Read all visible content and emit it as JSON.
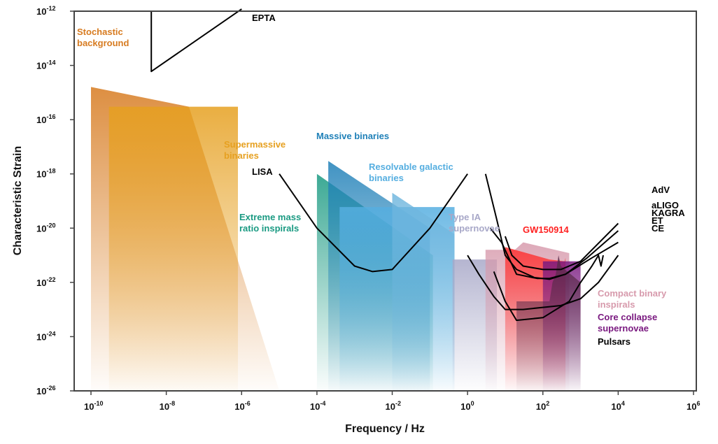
{
  "chart_data": {
    "type": "area",
    "xlabel": "Frequency / Hz",
    "ylabel": "Characteristic Strain",
    "x_scale": "log",
    "y_scale": "log",
    "xlim": [
      1e-10,
      1000000.0
    ],
    "ylim": [
      1e-26,
      1e-12
    ],
    "x_ticks": [
      {
        "base": "10",
        "exp": "-10"
      },
      {
        "base": "10",
        "exp": "-8"
      },
      {
        "base": "10",
        "exp": "-6"
      },
      {
        "base": "10",
        "exp": "-4"
      },
      {
        "base": "10",
        "exp": "-2"
      },
      {
        "base": "10",
        "exp": "0"
      },
      {
        "base": "10",
        "exp": "2"
      },
      {
        "base": "10",
        "exp": "4"
      },
      {
        "base": "10",
        "exp": "6"
      }
    ],
    "y_ticks": [
      {
        "base": "10",
        "exp": "-12"
      },
      {
        "base": "10",
        "exp": "-14"
      },
      {
        "base": "10",
        "exp": "-16"
      },
      {
        "base": "10",
        "exp": "-18"
      },
      {
        "base": "10",
        "exp": "-20"
      },
      {
        "base": "10",
        "exp": "-22"
      },
      {
        "base": "10",
        "exp": "-24"
      },
      {
        "base": "10",
        "exp": "-26"
      }
    ],
    "grid": false,
    "regions": [
      {
        "name": "Stochastic background",
        "color": "#d77b20",
        "points": [
          [
            1e-10,
            1.6e-15
          ],
          [
            4e-08,
            3e-16
          ],
          [
            1e-05,
            1e-26
          ],
          [
            1e-10,
            1e-26
          ]
        ]
      },
      {
        "name": "Supermassive binaries",
        "color": "#e6a020",
        "points": [
          [
            3e-10,
            3e-16
          ],
          [
            8e-07,
            3e-16
          ],
          [
            8e-07,
            1e-26
          ],
          [
            3e-10,
            1e-26
          ]
        ]
      },
      {
        "name": "Extreme mass ratio inspirals",
        "color": "#1a9a82",
        "points": [
          [
            0.0001,
            1e-18
          ],
          [
            0.12,
            1e-21
          ],
          [
            0.12,
            1e-26
          ],
          [
            0.0001,
            1e-26
          ]
        ]
      },
      {
        "name": "Massive binaries",
        "color": "#1f80b8",
        "points": [
          [
            0.0002,
            3e-18
          ],
          [
            0.1,
            1e-20
          ],
          [
            0.1,
            1e-26
          ],
          [
            0.0002,
            1e-26
          ]
        ]
      },
      {
        "name": "Resolvable galactic binaries",
        "color": "#55aee0",
        "points": [
          [
            0.0004,
            6e-20
          ],
          [
            0.45,
            6e-20
          ],
          [
            0.45,
            1e-26
          ],
          [
            0.0004,
            1e-26
          ]
        ]
      },
      {
        "name": "Resolvable galactic binaries",
        "color": "#6fb6de",
        "points": [
          [
            0.01,
            2e-19
          ],
          [
            0.45,
            6e-21
          ],
          [
            0.45,
            1e-26
          ],
          [
            0.01,
            1e-26
          ]
        ]
      },
      {
        "name": "Type IA supernovae",
        "color": "#a8a8c8",
        "points": [
          [
            0.4,
            7e-22
          ],
          [
            6,
            7e-22
          ],
          [
            6,
            1e-26
          ],
          [
            0.4,
            1e-26
          ]
        ]
      },
      {
        "name": "Compact binary inspirals",
        "color": "#d79aac",
        "points": [
          [
            3,
            1.6e-21
          ],
          [
            18,
            1.6e-21
          ],
          [
            30,
            3e-21
          ],
          [
            500,
            1.2e-21
          ],
          [
            500,
            1e-26
          ],
          [
            3,
            1e-26
          ]
        ]
      },
      {
        "name": "GW150914",
        "color": "#ff3030",
        "points": [
          [
            10,
            2e-21
          ],
          [
            150,
            7e-22
          ],
          [
            380,
            6e-22
          ],
          [
            400,
            8e-22
          ],
          [
            400,
            1e-26
          ],
          [
            10,
            1e-26
          ]
        ]
      },
      {
        "name": "Core collapse supernovae",
        "color": "#7a1a80",
        "points": [
          [
            100,
            6e-22
          ],
          [
            1000,
            6e-22
          ],
          [
            1000,
            1e-26
          ],
          [
            100,
            1e-26
          ]
        ]
      },
      {
        "name": "Compact binary inspirals",
        "color": "#5a2a4a",
        "points": [
          [
            20,
            2e-23
          ],
          [
            150,
            2e-23
          ],
          [
            180,
            1e-22
          ],
          [
            220,
            2e-22
          ],
          [
            260,
            1e-21
          ],
          [
            300,
            4e-22
          ],
          [
            1000,
            1e-22
          ],
          [
            1000,
            1e-26
          ],
          [
            20,
            1e-26
          ]
        ]
      }
    ],
    "series": [
      {
        "name": "EPTA",
        "color": "#000000",
        "points": [
          [
            4e-09,
            1e-12
          ],
          [
            4e-09,
            6e-15
          ],
          [
            1e-06,
            1.2e-12
          ]
        ]
      },
      {
        "name": "LISA",
        "color": "#000000",
        "points": [
          [
            1e-05,
            1e-18
          ],
          [
            0.0001,
            1e-20
          ],
          [
            0.001,
            4e-22
          ],
          [
            0.003,
            2.5e-22
          ],
          [
            0.01,
            3e-22
          ],
          [
            0.1,
            1e-20
          ],
          [
            1,
            1e-18
          ]
        ]
      },
      {
        "name": "AdV",
        "color": "#000000",
        "points": [
          [
            10,
            5e-21
          ],
          [
            15,
            1e-21
          ],
          [
            30,
            4e-22
          ],
          [
            100,
            3e-22
          ],
          [
            300,
            3e-22
          ],
          [
            1000,
            6e-22
          ],
          [
            10000,
            1.5e-20
          ]
        ]
      },
      {
        "name": "aLIGO",
        "color": "#000000",
        "points": [
          [
            3,
            1e-18
          ],
          [
            6,
            2e-20
          ],
          [
            10,
            1e-21
          ],
          [
            20,
            3e-22
          ],
          [
            60,
            1.5e-22
          ],
          [
            150,
            1.3e-22
          ],
          [
            400,
            2e-22
          ],
          [
            1500,
            8e-22
          ],
          [
            10000,
            8e-21
          ]
        ]
      },
      {
        "name": "KAGRA",
        "color": "#000000",
        "points": [
          [
            4,
            1e-20
          ],
          [
            8,
            3e-21
          ],
          [
            20,
            2e-22
          ],
          [
            70,
            1.4e-22
          ],
          [
            150,
            1.4e-22
          ],
          [
            400,
            2e-22
          ],
          [
            2000,
            8e-22
          ],
          [
            10000,
            3e-21
          ]
        ]
      },
      {
        "name": "ET",
        "color": "#000000",
        "points": [
          [
            1,
            1e-21
          ],
          [
            2,
            2e-22
          ],
          [
            5,
            3e-23
          ],
          [
            10,
            1e-23
          ],
          [
            30,
            1e-23
          ],
          [
            100,
            1.2e-23
          ],
          [
            300,
            1.4e-23
          ],
          [
            1000,
            2.5e-23
          ],
          [
            3000,
            1e-22
          ],
          [
            10000,
            1e-21
          ]
        ]
      },
      {
        "name": "CE",
        "color": "#000000",
        "points": [
          [
            5,
            2.5e-22
          ],
          [
            10,
            2e-23
          ],
          [
            20,
            4e-24
          ],
          [
            100,
            5e-24
          ],
          [
            500,
            2e-23
          ],
          [
            1000,
            1e-22
          ],
          [
            2000,
            4e-22
          ],
          [
            3000,
            1e-21
          ],
          [
            3500,
            4e-22
          ],
          [
            4000,
            1e-21
          ]
        ]
      }
    ],
    "annotations": [
      {
        "text": "EPTA",
        "color": "#000000"
      },
      {
        "text": "Stochastic",
        "color": "#d77b20"
      },
      {
        "text": "background",
        "color": "#d77b20"
      },
      {
        "text": "Supermassive",
        "color": "#e6a020"
      },
      {
        "text": "binaries",
        "color": "#e6a020"
      },
      {
        "text": "Massive binaries",
        "color": "#1f80b8"
      },
      {
        "text": "Resolvable galactic",
        "color": "#55aee0"
      },
      {
        "text": "binaries",
        "color": "#55aee0"
      },
      {
        "text": "LISA",
        "color": "#000000"
      },
      {
        "text": "Extreme mass",
        "color": "#1a9a82"
      },
      {
        "text": "ratio inspirals",
        "color": "#1a9a82"
      },
      {
        "text": "Type IA",
        "color": "#a8a8c8"
      },
      {
        "text": "supernovae",
        "color": "#a8a8c8"
      },
      {
        "text": "GW150914",
        "color": "#ff2020"
      },
      {
        "text": "AdV",
        "color": "#000000"
      },
      {
        "text": "aLIGO",
        "color": "#000000"
      },
      {
        "text": "KAGRA",
        "color": "#000000"
      },
      {
        "text": "ET",
        "color": "#000000"
      },
      {
        "text": "CE",
        "color": "#000000"
      },
      {
        "text": "Compact binary",
        "color": "#d79aac"
      },
      {
        "text": "inspirals",
        "color": "#d79aac"
      },
      {
        "text": "Core collapse",
        "color": "#7a1a80"
      },
      {
        "text": "supernovae",
        "color": "#7a1a80"
      },
      {
        "text": "Pulsars",
        "color": "#000000"
      }
    ]
  }
}
